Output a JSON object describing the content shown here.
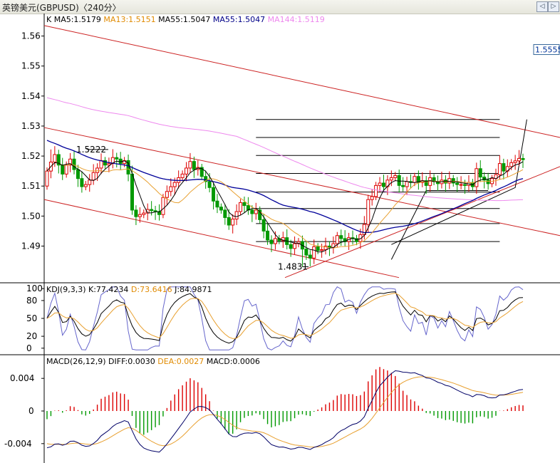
{
  "window": {
    "title": "英镑美元(GBPUSD)〈240分〉",
    "prev_label": "◁",
    "next_label": "▷"
  },
  "colors": {
    "up": "#dd0000",
    "down": "#009900",
    "ma5": "#000000",
    "ma13": "#e8a030",
    "ma55": "#000099",
    "ma144": "#ee88ee",
    "channel": "#cc2222",
    "hline": "#000000"
  },
  "main": {
    "legend": [
      {
        "text": "K",
        "color": "#000000"
      },
      {
        "text": "MA5:1.5179",
        "color": "#000000"
      },
      {
        "text": "MA13:1.5151",
        "color": "#e08a00"
      },
      {
        "text": "MA55:1.5047",
        "color": "#000000"
      },
      {
        "text": "MA55:1.5047",
        "color": "#000088"
      },
      {
        "text": "MA144:1.5119",
        "color": "#ee88ee"
      }
    ],
    "yticks": [
      "1.56",
      "1.55",
      "1.54",
      "1.53",
      "1.52",
      "1.51",
      "1.50",
      "1.49"
    ],
    "price_box": "1.5555",
    "high_label": "1.5222",
    "low_label": "1.4831"
  },
  "kdj": {
    "legend": [
      {
        "text": "KDJ(9,3,3)",
        "color": "#000000"
      },
      {
        "text": "K:77.4234",
        "color": "#000000"
      },
      {
        "text": "D:73.6416",
        "color": "#e08a00"
      },
      {
        "text": "J:84.9871",
        "color": "#000000"
      }
    ],
    "yticks": [
      "100",
      "80",
      "50",
      "20",
      "0"
    ]
  },
  "macd": {
    "legend": [
      {
        "text": "MACD(26,12,9)",
        "color": "#000000"
      },
      {
        "text": "DIFF:0.0030",
        "color": "#000000"
      },
      {
        "text": "DEA:0.0027",
        "color": "#e08a00"
      },
      {
        "text": "MACD:0.0006",
        "color": "#000000"
      }
    ],
    "yticks": [
      "0.004",
      "0",
      "-0.004"
    ]
  },
  "chart_data": [
    {
      "type": "candlestick",
      "title": "英镑美元(GBPUSD)〈240分〉",
      "ylim": [
        1.478,
        1.5675
      ],
      "ticks": [
        1.56,
        1.55,
        1.54,
        1.53,
        1.52,
        1.51,
        1.5,
        1.49
      ],
      "closes": [
        1.515,
        1.518,
        1.5205,
        1.517,
        1.514,
        1.517,
        1.519,
        1.5155,
        1.5125,
        1.5098,
        1.5105,
        1.512,
        1.5145,
        1.516,
        1.5185,
        1.517,
        1.5175,
        1.5195,
        1.519,
        1.5175,
        1.5185,
        1.514,
        1.502,
        1.4998,
        1.5005,
        1.501,
        1.5022,
        1.5018,
        1.5015,
        1.5005,
        1.5062,
        1.5082,
        1.5098,
        1.5112,
        1.5128,
        1.514,
        1.516,
        1.5182,
        1.5155,
        1.5162,
        1.5132,
        1.5115,
        1.5095,
        1.505,
        1.503,
        1.502,
        1.4995,
        1.497,
        1.499,
        1.5015,
        1.5045,
        1.5035,
        1.502,
        1.5008,
        1.502,
        1.4988,
        1.495,
        1.492,
        1.4908,
        1.4925,
        1.4918,
        1.4928,
        1.4905,
        1.4892,
        1.4908,
        1.4915,
        1.489,
        1.487,
        1.486,
        1.4898,
        1.4885,
        1.4888,
        1.49,
        1.4895,
        1.4908,
        1.4935,
        1.4925,
        1.4915,
        1.4928,
        1.4925,
        1.4915,
        1.4938,
        1.4972,
        1.5055,
        1.5065,
        1.5102,
        1.511,
        1.5098,
        1.512,
        1.5128,
        1.5135,
        1.5102,
        1.5098,
        1.5115,
        1.5112,
        1.5132,
        1.5112,
        1.5118,
        1.5102,
        1.5128,
        1.5115,
        1.5108,
        1.512,
        1.511,
        1.5125,
        1.511,
        1.5105,
        1.5105,
        1.5102,
        1.5112,
        1.5098,
        1.5158,
        1.513,
        1.512,
        1.5108,
        1.5125,
        1.5138,
        1.5175,
        1.515,
        1.5165,
        1.5178,
        1.5184,
        1.5192,
        1.5188
      ],
      "ohlc_sample": [
        [
          1.51,
          1.5195,
          1.5075,
          1.515
        ],
        [
          1.515,
          1.5222,
          1.514,
          1.518
        ],
        [
          1.5015,
          1.505,
          1.4831,
          1.4855
        ],
        [
          1.5178,
          1.522,
          1.5162,
          1.5188
        ]
      ],
      "series": [
        {
          "name": "MA5",
          "last": 1.5179
        },
        {
          "name": "MA13",
          "last": 1.5151
        },
        {
          "name": "MA55",
          "last": 1.5047
        },
        {
          "name": "MA144",
          "last": 1.5119
        }
      ],
      "annotations": [
        {
          "text": "1.5222",
          "value": 1.5222
        },
        {
          "text": "1.4831",
          "value": 1.4831
        },
        {
          "text": "1.5555",
          "value": 1.5555
        }
      ],
      "hlines": [
        1.5322,
        1.5262,
        1.5202,
        1.5142,
        1.508,
        1.5025,
        1.4975,
        1.4915
      ]
    },
    {
      "type": "line",
      "title": "KDJ(9,3,3)",
      "ylim": [
        -5,
        105
      ],
      "ticks": [
        100,
        80,
        50,
        20,
        0
      ],
      "series": [
        {
          "name": "K",
          "last": 77.4234
        },
        {
          "name": "D",
          "last": 73.6416
        },
        {
          "name": "J",
          "last": 84.9871
        }
      ]
    },
    {
      "type": "bar",
      "title": "MACD(26,12,9)",
      "ylim": [
        -0.0062,
        0.0062
      ],
      "ticks": [
        0.004,
        0,
        -0.004
      ],
      "series": [
        {
          "name": "DIFF",
          "last": 0.003
        },
        {
          "name": "DEA",
          "last": 0.0027
        },
        {
          "name": "MACD",
          "last": 0.0006
        }
      ]
    }
  ]
}
